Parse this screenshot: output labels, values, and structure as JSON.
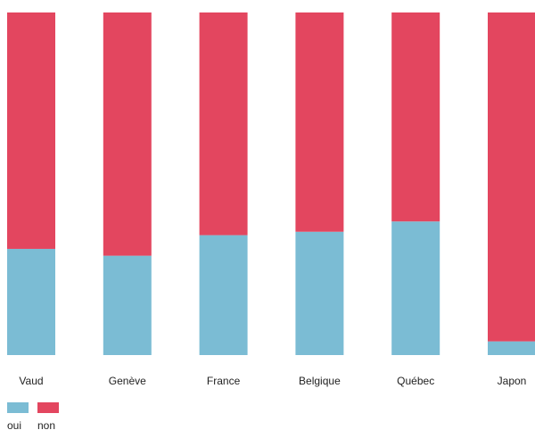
{
  "chart_data": {
    "type": "bar",
    "stacked": true,
    "normalized": true,
    "categories": [
      "Vaud",
      "Genève",
      "France",
      "Belgique",
      "Québec",
      "Japon"
    ],
    "series": [
      {
        "name": "oui",
        "color": "#7bbcd4",
        "values": [
          31,
          29,
          35,
          36,
          39,
          4
        ]
      },
      {
        "name": "non",
        "color": "#e3465f",
        "values": [
          69,
          71,
          65,
          64,
          61,
          96
        ]
      }
    ],
    "ylim": [
      0,
      100
    ],
    "grid": false,
    "legend_position": "bottom-left"
  }
}
